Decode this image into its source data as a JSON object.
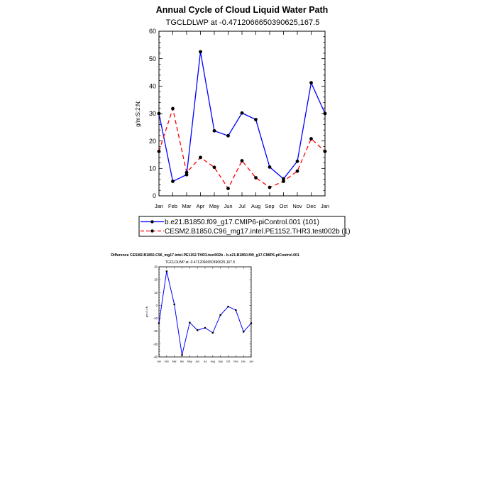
{
  "chart_data": [
    {
      "type": "line",
      "title": "Annual Cycle of Cloud Liquid Water Path",
      "subtitle": "TGCLDLWP at -0.4712066650390625,167.5",
      "xlabel": "",
      "ylabel": "g/m:S:2:N:",
      "categories": [
        "Jan",
        "Feb",
        "Mar",
        "Apr",
        "May",
        "Jun",
        "Jul",
        "Aug",
        "Sep",
        "Oct",
        "Nov",
        "Dec",
        "Jan"
      ],
      "ylim": [
        0,
        60
      ],
      "yticks": [
        0,
        10,
        20,
        30,
        40,
        50,
        60
      ],
      "legend_position": "bottom",
      "series": [
        {
          "name": "b.e21.B1850.f09_g17.CMIP6-piControl.001 (101)",
          "color": "#0000ff",
          "dash": "solid",
          "values": [
            30.0,
            5.3,
            7.7,
            52.5,
            23.7,
            21.9,
            30.2,
            27.8,
            10.5,
            6.2,
            12.6,
            41.2,
            30.0
          ]
        },
        {
          "name": "CESM2.B1850.C96_mg17.intel.PE1152.THR3.test002b (1)",
          "color": "#ff0000",
          "dash": "dashed",
          "values": [
            16.2,
            31.8,
            8.5,
            14.0,
            10.4,
            2.7,
            12.8,
            6.6,
            3.1,
            5.3,
            9.0,
            20.8,
            16.2
          ]
        }
      ]
    },
    {
      "type": "line",
      "title": "Difference CESM2.B1850.C96_mg17.intel.PE1152.THR3.test002b - b.e21.B1850.f09_g17.CMIP6-piControl.001",
      "subtitle": "TGCLDLWP at -0.4712066650390625,167.5",
      "xlabel": "",
      "ylabel": "g/m:S:2:N:",
      "categories": [
        "Jan",
        "Feb",
        "Mar",
        "Apr",
        "May",
        "Jun",
        "Jul",
        "Aug",
        "Sep",
        "Oct",
        "Nov",
        "Dec",
        "Jan"
      ],
      "ylim": [
        -40,
        30
      ],
      "yticks": [
        -40,
        -30,
        -20,
        -10,
        0,
        10,
        20,
        30
      ],
      "series": [
        {
          "color": "#0000ff",
          "values": [
            -13.8,
            26.5,
            0.8,
            -38.5,
            -13.3,
            -19.2,
            -17.4,
            -21.2,
            -7.4,
            -0.9,
            -3.6,
            -20.4,
            -13.8
          ]
        }
      ]
    }
  ]
}
